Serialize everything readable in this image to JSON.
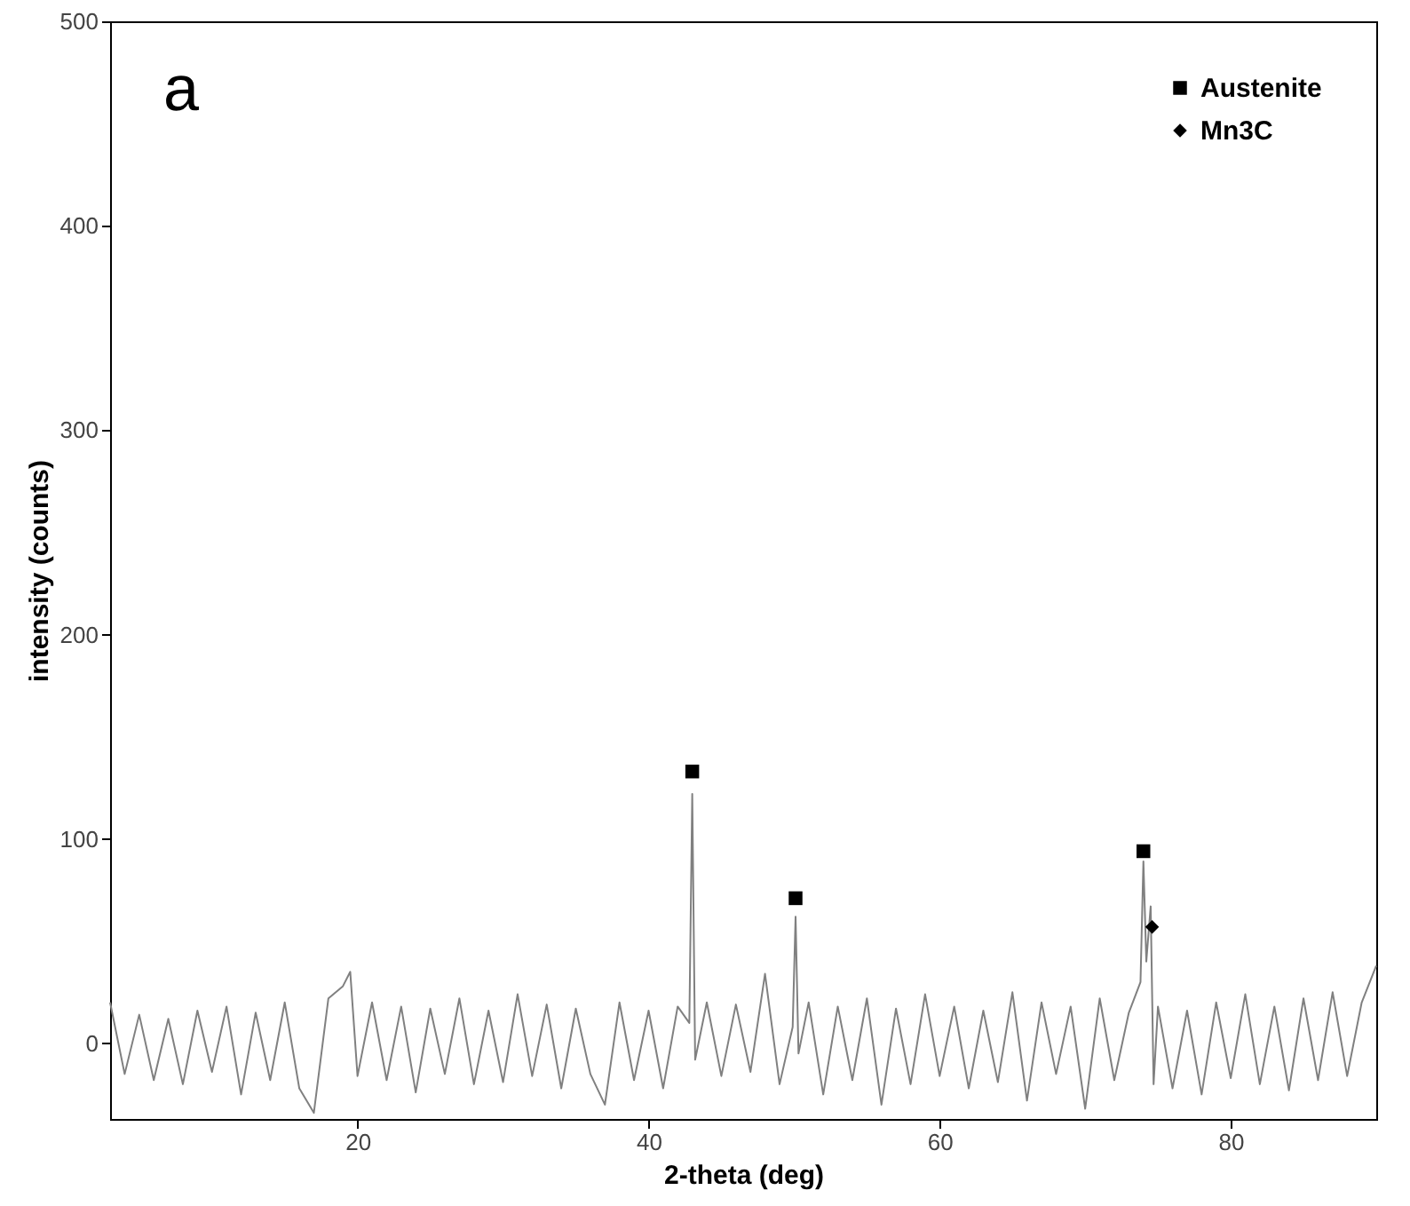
{
  "chart_data": {
    "type": "line",
    "xlabel": "2-theta (deg)",
    "ylabel": "intensity (counts)",
    "annotations": [
      "a"
    ],
    "xlim": [
      3,
      90
    ],
    "ylim": [
      -37,
      500
    ],
    "xticks": [
      20,
      40,
      60,
      80
    ],
    "yticks": [
      0,
      100,
      200,
      300,
      400,
      500
    ],
    "grid": false,
    "legend": "top right",
    "series": [
      {
        "type": "line",
        "color": "#808080",
        "marker": "none",
        "x": [
          3,
          4,
          5,
          6,
          7,
          8,
          9,
          10,
          11,
          12,
          13,
          14,
          15,
          16,
          17,
          18,
          19,
          19.5,
          20,
          21,
          22,
          23,
          24,
          25,
          26,
          27,
          28,
          29,
          30,
          31,
          32,
          33,
          34,
          35,
          36,
          37,
          38,
          39,
          40,
          41,
          42,
          42.8,
          43.0,
          43.2,
          44,
          45,
          46,
          47,
          48,
          49,
          49.9,
          50.1,
          50.3,
          51,
          52,
          53,
          54,
          55,
          56,
          57,
          58,
          59,
          60,
          61,
          62,
          63,
          64,
          65,
          66,
          67,
          68,
          69,
          70,
          71,
          72,
          73,
          73.8,
          74.0,
          74.2,
          74.5,
          74.7,
          75,
          76,
          77,
          78,
          79,
          80,
          81,
          82,
          83,
          84,
          85,
          86,
          87,
          88,
          89,
          90
        ],
        "values": [
          20,
          -15,
          14,
          -18,
          12,
          -20,
          16,
          -14,
          18,
          -25,
          15,
          -18,
          20,
          -22,
          -34,
          22,
          28,
          35,
          -16,
          20,
          -18,
          18,
          -24,
          17,
          -15,
          22,
          -20,
          16,
          -19,
          24,
          -16,
          19,
          -22,
          17,
          -15,
          -30,
          20,
          -18,
          16,
          -22,
          18,
          10,
          122,
          -8,
          20,
          -16,
          19,
          -14,
          34,
          -20,
          8,
          62,
          -5,
          20,
          -25,
          18,
          -18,
          22,
          -30,
          17,
          -20,
          24,
          -16,
          18,
          -22,
          16,
          -19,
          25,
          -28,
          20,
          -15,
          18,
          -32,
          22,
          -18,
          15,
          30,
          89,
          40,
          67,
          -20,
          18,
          -22,
          16,
          -25,
          20,
          -17,
          24,
          -20,
          18,
          -23,
          22,
          -18,
          25,
          -16,
          20,
          38
        ]
      },
      {
        "type": "scatter",
        "name": "Austenite",
        "color": "#000000",
        "marker": "square",
        "x": [
          43.0,
          50.1,
          74.0
        ],
        "values": [
          133,
          71,
          94
        ]
      },
      {
        "type": "scatter",
        "name": "Mn3C",
        "color": "#000000",
        "marker": "diamond",
        "x": [
          74.6
        ],
        "values": [
          57
        ]
      }
    ]
  }
}
